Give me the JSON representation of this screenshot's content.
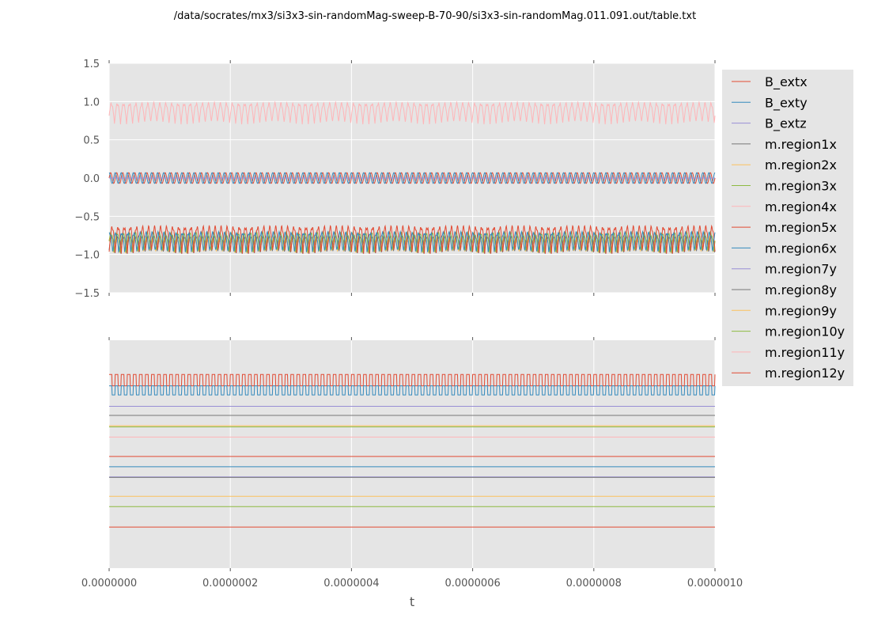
{
  "title": "/data/socrates/mx3/si3x3-sin-randomMag-sweep-B-70-90/si3x3-sin-randomMag.011.091.out/table.txt",
  "colors": {
    "plot_background": "#e5e5e5",
    "grid": "#ffffff",
    "tick_text": "#555555",
    "palette": [
      "#e24a33",
      "#348abd",
      "#988ed5",
      "#777777",
      "#fbc15e",
      "#8eba42",
      "#ffb5b8"
    ]
  },
  "chart_data": [
    {
      "type": "line",
      "panel": "top",
      "title": "",
      "xlabel": "",
      "ylabel": "",
      "xlim": [
        0,
        1e-06
      ],
      "ylim": [
        -1.5,
        1.5
      ],
      "xticks": [
        0,
        2e-07,
        4e-07,
        6e-07,
        8e-07,
        1e-06
      ],
      "yticks": [
        -1.5,
        -1.0,
        -0.5,
        0.0,
        0.5,
        1.0,
        1.5
      ],
      "ytick_labels": [
        "−1.5",
        "−1.0",
        "−0.5",
        "0.0",
        "0.5",
        "1.0",
        "1.5"
      ],
      "grid": true,
      "legend": "right-outside",
      "series": [
        {
          "name": "B_extx",
          "color": "#e24a33",
          "pattern": "sine",
          "center": 0.0,
          "amplitude": 0.07,
          "cycles": 100,
          "phase": 0
        },
        {
          "name": "B_exty",
          "color": "#348abd",
          "pattern": "sine",
          "center": 0.0,
          "amplitude": 0.07,
          "cycles": 100,
          "phase": 1.57
        },
        {
          "name": "B_extz",
          "color": "#988ed5",
          "pattern": "flat",
          "center": 0.0
        },
        {
          "name": "m.region1x",
          "color": "#777777",
          "pattern": "oscillating",
          "high": -0.75,
          "low": -0.99,
          "cycles": 100,
          "phase": 0.4
        },
        {
          "name": "m.region2x",
          "color": "#fbc15e",
          "pattern": "oscillating",
          "high": -0.78,
          "low": -0.99,
          "cycles": 100,
          "phase": 2.1
        },
        {
          "name": "m.region3x",
          "color": "#8eba42",
          "pattern": "oscillating",
          "high": -0.7,
          "low": -0.98,
          "cycles": 100,
          "phase": 1.2
        },
        {
          "name": "m.region4x",
          "color": "#ffb5b8",
          "pattern": "oscillating",
          "high": 0.99,
          "low": 0.7,
          "cycles": 100,
          "phase": 0.8
        },
        {
          "name": "m.region5x",
          "color": "#e24a33",
          "pattern": "oscillating",
          "high": -0.62,
          "low": -0.99,
          "cycles": 100,
          "phase": 0.0
        },
        {
          "name": "m.region6x",
          "color": "#348abd",
          "pattern": "oscillating",
          "high": -0.7,
          "low": -0.99,
          "cycles": 100,
          "phase": 2.6
        }
      ]
    },
    {
      "type": "line",
      "panel": "bottom",
      "title": "",
      "xlabel": "t",
      "ylabel": "",
      "xlim": [
        0,
        1e-06
      ],
      "ylim": [
        0,
        1
      ],
      "xticks": [
        0,
        2e-07,
        4e-07,
        6e-07,
        8e-07,
        1e-06
      ],
      "xtick_labels": [
        "0.0000000",
        "0.0000002",
        "0.0000004",
        "0.0000006",
        "0.0000008",
        "0.0000010"
      ],
      "yticks": [],
      "grid": true,
      "series": [
        {
          "name": "m.region7y",
          "color": "#988ed5",
          "pattern": "flat",
          "level": 0.71
        },
        {
          "name": "m.region8y",
          "color": "#777777",
          "pattern": "flat",
          "level": 0.67
        },
        {
          "name": "m.region9y",
          "color": "#fbc15e",
          "pattern": "flat",
          "level": 0.625
        },
        {
          "name": "m.region10y",
          "color": "#8eba42",
          "pattern": "flat",
          "level": 0.62
        },
        {
          "name": "m.region11y",
          "color": "#ffb5b8",
          "pattern": "flat",
          "level": 0.575
        },
        {
          "name": "m.region12y",
          "color": "#e24a33",
          "pattern": "square",
          "high": 0.85,
          "low": 0.8,
          "cycles": 100
        },
        {
          "name": "",
          "color": "#348abd",
          "pattern": "square",
          "high": 0.8,
          "low": 0.76,
          "cycles": 100
        },
        {
          "name": "",
          "color": "#e24a33",
          "pattern": "flat",
          "level": 0.49
        },
        {
          "name": "",
          "color": "#348abd",
          "pattern": "flat",
          "level": 0.445
        },
        {
          "name": "",
          "color": "#988ed5",
          "pattern": "flat",
          "level": 0.4
        },
        {
          "name": "",
          "color": "#777777",
          "pattern": "flat",
          "level": 0.398
        },
        {
          "name": "",
          "color": "#fbc15e",
          "pattern": "flat",
          "level": 0.315
        },
        {
          "name": "",
          "color": "#8eba42",
          "pattern": "flat",
          "level": 0.27
        },
        {
          "name": "",
          "color": "#e24a33",
          "pattern": "flat",
          "level": 0.18
        }
      ]
    }
  ],
  "legend": {
    "placement": "right-outside",
    "entries": [
      {
        "label": "B_extx",
        "color": "#e24a33"
      },
      {
        "label": "B_exty",
        "color": "#348abd"
      },
      {
        "label": "B_extz",
        "color": "#988ed5"
      },
      {
        "label": "m.region1x",
        "color": "#777777"
      },
      {
        "label": "m.region2x",
        "color": "#fbc15e"
      },
      {
        "label": "m.region3x",
        "color": "#8eba42"
      },
      {
        "label": "m.region4x",
        "color": "#ffb5b8"
      },
      {
        "label": "m.region5x",
        "color": "#e24a33"
      },
      {
        "label": "m.region6x",
        "color": "#348abd"
      },
      {
        "label": "m.region7y",
        "color": "#988ed5"
      },
      {
        "label": "m.region8y",
        "color": "#777777"
      },
      {
        "label": "m.region9y",
        "color": "#fbc15e"
      },
      {
        "label": "m.region10y",
        "color": "#8eba42"
      },
      {
        "label": "m.region11y",
        "color": "#ffb5b8"
      },
      {
        "label": "m.region12y",
        "color": "#e24a33"
      }
    ]
  }
}
